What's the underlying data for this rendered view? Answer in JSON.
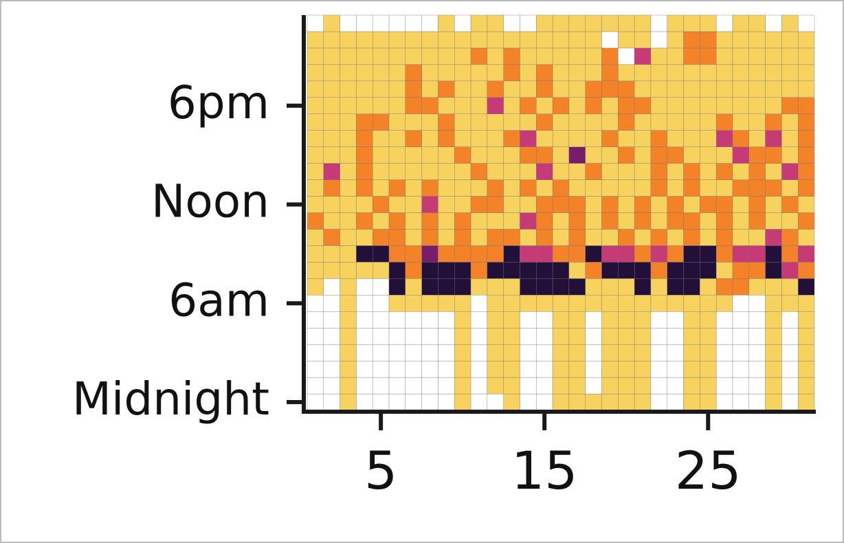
{
  "chart_data": {
    "type": "heatmap",
    "x": [
      1,
      2,
      3,
      4,
      5,
      6,
      7,
      8,
      9,
      10,
      11,
      12,
      13,
      14,
      15,
      16,
      17,
      18,
      19,
      20,
      21,
      22,
      23,
      24,
      25,
      26,
      27,
      28,
      29,
      30,
      31
    ],
    "y": [
      0,
      1,
      2,
      3,
      4,
      5,
      6,
      7,
      8,
      9,
      10,
      11,
      12,
      13,
      14,
      15,
      16,
      17,
      18,
      19,
      20,
      21,
      22,
      23
    ],
    "z": [
      [
        0,
        0,
        1,
        0,
        0,
        0,
        0,
        0,
        0,
        1,
        0,
        0,
        1,
        0,
        0,
        1,
        1,
        1,
        1,
        1,
        1,
        0,
        0,
        1,
        1,
        0,
        0,
        0,
        1,
        0,
        1
      ],
      [
        0,
        0,
        1,
        0,
        0,
        0,
        0,
        0,
        0,
        1,
        0,
        1,
        1,
        0,
        0,
        1,
        1,
        0,
        1,
        1,
        1,
        0,
        0,
        1,
        1,
        0,
        0,
        0,
        1,
        0,
        1
      ],
      [
        0,
        0,
        1,
        0,
        0,
        0,
        0,
        0,
        0,
        1,
        0,
        1,
        1,
        0,
        0,
        1,
        1,
        0,
        1,
        1,
        1,
        0,
        0,
        1,
        1,
        0,
        0,
        0,
        1,
        0,
        1
      ],
      [
        0,
        0,
        1,
        0,
        0,
        0,
        0,
        0,
        0,
        1,
        0,
        1,
        1,
        0,
        0,
        1,
        1,
        0,
        1,
        1,
        1,
        0,
        0,
        1,
        1,
        0,
        0,
        0,
        1,
        0,
        1
      ],
      [
        0,
        0,
        1,
        0,
        0,
        0,
        0,
        0,
        0,
        1,
        0,
        1,
        1,
        0,
        0,
        1,
        1,
        0,
        1,
        1,
        1,
        0,
        0,
        1,
        1,
        0,
        0,
        0,
        1,
        0,
        1
      ],
      [
        0,
        0,
        1,
        0,
        0,
        0,
        0,
        0,
        0,
        1,
        0,
        1,
        1,
        0,
        0,
        1,
        1,
        0,
        1,
        1,
        1,
        0,
        0,
        1,
        1,
        0,
        0,
        0,
        1,
        0,
        1
      ],
      [
        0,
        0,
        1,
        0,
        0,
        1,
        1,
        1,
        1,
        1,
        0,
        1,
        1,
        1,
        1,
        1,
        1,
        1,
        1,
        1,
        1,
        1,
        1,
        1,
        1,
        1,
        0,
        0,
        1,
        1,
        1
      ],
      [
        1,
        0,
        1,
        0,
        0,
        5,
        1,
        5,
        5,
        5,
        1,
        1,
        1,
        5,
        5,
        5,
        5,
        1,
        1,
        1,
        5,
        1,
        5,
        5,
        1,
        2,
        2,
        1,
        1,
        1,
        5
      ],
      [
        1,
        1,
        1,
        1,
        1,
        5,
        2,
        5,
        5,
        5,
        2,
        5,
        5,
        5,
        5,
        5,
        1,
        2,
        5,
        5,
        5,
        2,
        5,
        5,
        5,
        1,
        2,
        2,
        5,
        3,
        2
      ],
      [
        1,
        1,
        1,
        5,
        5,
        2,
        2,
        4,
        2,
        2,
        2,
        2,
        5,
        3,
        3,
        2,
        2,
        5,
        3,
        3,
        2,
        3,
        2,
        5,
        5,
        2,
        3,
        3,
        5,
        2,
        3
      ],
      [
        1,
        2,
        1,
        1,
        2,
        2,
        1,
        2,
        1,
        2,
        1,
        2,
        2,
        1,
        2,
        1,
        2,
        1,
        1,
        2,
        1,
        2,
        1,
        2,
        1,
        2,
        1,
        1,
        3,
        2,
        1
      ],
      [
        2,
        1,
        1,
        2,
        1,
        2,
        1,
        2,
        1,
        2,
        1,
        1,
        1,
        3,
        2,
        1,
        2,
        1,
        2,
        1,
        2,
        1,
        2,
        2,
        1,
        2,
        1,
        2,
        1,
        1,
        2
      ],
      [
        1,
        1,
        1,
        1,
        2,
        1,
        1,
        3,
        1,
        1,
        2,
        2,
        1,
        1,
        2,
        2,
        2,
        1,
        2,
        1,
        2,
        1,
        2,
        1,
        2,
        2,
        1,
        2,
        1,
        2,
        1
      ],
      [
        1,
        2,
        1,
        2,
        1,
        2,
        1,
        2,
        1,
        1,
        1,
        2,
        1,
        2,
        1,
        2,
        1,
        1,
        1,
        1,
        1,
        2,
        1,
        2,
        1,
        1,
        2,
        2,
        2,
        1,
        2
      ],
      [
        1,
        3,
        1,
        2,
        1,
        1,
        1,
        1,
        1,
        1,
        2,
        1,
        1,
        1,
        3,
        1,
        1,
        2,
        1,
        1,
        1,
        2,
        1,
        2,
        1,
        2,
        1,
        2,
        1,
        3,
        2
      ],
      [
        1,
        1,
        1,
        2,
        1,
        1,
        1,
        1,
        1,
        2,
        1,
        1,
        1,
        2,
        2,
        1,
        4,
        1,
        1,
        2,
        1,
        2,
        2,
        1,
        1,
        1,
        3,
        2,
        2,
        1,
        2
      ],
      [
        1,
        1,
        1,
        2,
        1,
        1,
        2,
        1,
        2,
        1,
        1,
        1,
        2,
        3,
        1,
        1,
        1,
        1,
        2,
        1,
        1,
        2,
        1,
        1,
        1,
        3,
        2,
        1,
        3,
        1,
        2
      ],
      [
        1,
        1,
        1,
        2,
        2,
        1,
        1,
        1,
        2,
        1,
        1,
        1,
        1,
        1,
        2,
        1,
        1,
        1,
        1,
        2,
        1,
        1,
        1,
        1,
        1,
        2,
        1,
        1,
        2,
        1,
        2
      ],
      [
        1,
        1,
        1,
        1,
        1,
        1,
        2,
        2,
        1,
        1,
        1,
        3,
        1,
        2,
        1,
        2,
        1,
        2,
        1,
        2,
        2,
        1,
        1,
        1,
        1,
        1,
        1,
        1,
        1,
        2,
        2
      ],
      [
        1,
        1,
        1,
        1,
        1,
        1,
        2,
        1,
        2,
        1,
        1,
        2,
        1,
        1,
        2,
        1,
        1,
        2,
        2,
        2,
        1,
        1,
        1,
        1,
        1,
        1,
        1,
        1,
        1,
        1,
        1
      ],
      [
        1,
        1,
        1,
        1,
        1,
        1,
        2,
        1,
        1,
        1,
        1,
        1,
        2,
        1,
        2,
        1,
        1,
        1,
        2,
        1,
        1,
        1,
        1,
        1,
        1,
        1,
        1,
        1,
        1,
        1,
        1
      ],
      [
        1,
        1,
        1,
        1,
        1,
        1,
        1,
        1,
        1,
        1,
        2,
        1,
        2,
        1,
        1,
        1,
        1,
        1,
        2,
        0,
        3,
        1,
        1,
        2,
        2,
        1,
        1,
        1,
        1,
        1,
        1
      ],
      [
        1,
        1,
        1,
        1,
        1,
        1,
        1,
        1,
        1,
        1,
        1,
        1,
        1,
        1,
        1,
        1,
        1,
        1,
        0,
        1,
        1,
        0,
        1,
        2,
        2,
        1,
        1,
        1,
        1,
        1,
        1
      ],
      [
        0,
        1,
        0,
        0,
        0,
        0,
        0,
        0,
        1,
        0,
        1,
        1,
        0,
        0,
        1,
        1,
        1,
        1,
        1,
        1,
        1,
        0,
        1,
        1,
        1,
        0,
        1,
        1,
        0,
        1,
        0
      ]
    ],
    "colors": [
      "#ffffff",
      "#f8d25f",
      "#f48228",
      "#c63a76",
      "#781c6d",
      "#231038"
    ],
    "xlim": [
      0.5,
      31.5
    ],
    "xticks": [
      5,
      15,
      25
    ],
    "ylim": [
      -0.5,
      23.5
    ],
    "yticks": [
      {
        "value": 0,
        "label": "Midnight"
      },
      {
        "value": 6,
        "label": "6am"
      },
      {
        "value": 12,
        "label": "Noon"
      },
      {
        "value": 18,
        "label": "6pm"
      }
    ]
  }
}
